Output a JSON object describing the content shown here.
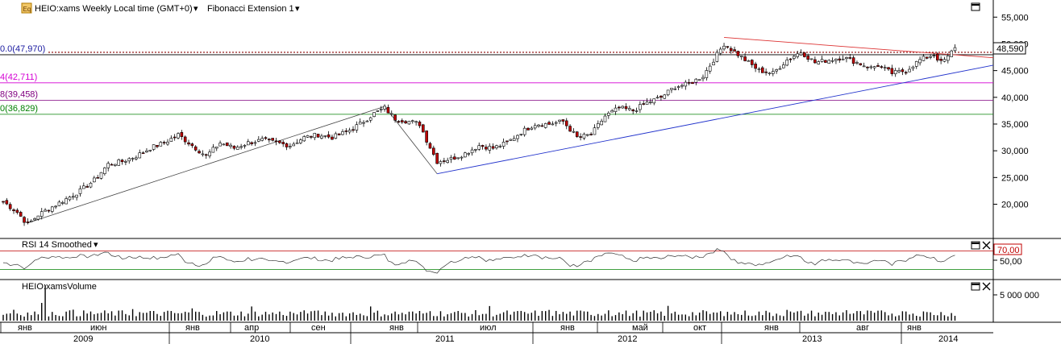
{
  "header": {
    "symbol_label": "HEIO:xams Weekly Local time (GMT+0)",
    "study_label": "Fibonacci Extension 1",
    "dropdown_glyph": "▾",
    "maximize_icon": "maximize-icon",
    "logo_icon": "chart-logo-icon"
  },
  "colors": {
    "up": "#ffffff",
    "down": "#c00000",
    "wick": "#000000",
    "trend_blue": "#2233cc",
    "trend_red": "#dd3333",
    "fib_0": "#1a1aa0",
    "fib_1": "#d400d4",
    "fib_2": "#800080",
    "fib_3": "#008000",
    "rsi_line": "#333333",
    "rsi_70": "#c00000",
    "rsi_30": "#008000"
  },
  "fib_levels": [
    {
      "label": "0.0(47,970)",
      "value": 47970,
      "color": "#1a1aa0"
    },
    {
      "label": "4(42,711)",
      "value": 42711,
      "color": "#d400d4"
    },
    {
      "label": "8(39,458)",
      "value": 39458,
      "color": "#800080"
    },
    {
      "label": "0(36,829)",
      "value": 36829,
      "color": "#008000"
    }
  ],
  "last_price_label": "48,590",
  "last_price": 48590,
  "rsi": {
    "title": "RSI 14 Smoothed",
    "level_label": "70,00",
    "axis_label": "50,00"
  },
  "volume": {
    "title": "HEIO:xamsVolume",
    "axis_label": "5 000 000"
  },
  "chart_data": {
    "type": "candlestick",
    "title": "HEIO:xams Weekly Local time (GMT+0)",
    "y_ticks": [
      "55,000",
      "50,000",
      "45,000",
      "40,000",
      "35,000",
      "30,000",
      "25,000",
      "20,000"
    ],
    "y_values": [
      55000,
      50000,
      45000,
      40000,
      35000,
      30000,
      25000,
      20000
    ],
    "ylim": [
      14500,
      57000
    ],
    "month_labels": [
      "янв",
      "июн",
      "янв",
      "апр",
      "сен",
      "янв",
      "июл",
      "янв",
      "май",
      "окт",
      "янв",
      "авг",
      "янв"
    ],
    "year_labels": [
      "2009",
      "2010",
      "2011",
      "2012",
      "2013",
      "2014"
    ],
    "close_anchors": [
      [
        0,
        20500
      ],
      [
        4,
        18500
      ],
      [
        7,
        16200
      ],
      [
        10,
        18000
      ],
      [
        14,
        19500
      ],
      [
        18,
        21000
      ],
      [
        22,
        22500
      ],
      [
        26,
        24500
      ],
      [
        30,
        27500
      ],
      [
        34,
        28000
      ],
      [
        38,
        29000
      ],
      [
        42,
        30500
      ],
      [
        46,
        31500
      ],
      [
        50,
        33000
      ],
      [
        54,
        31000
      ],
      [
        58,
        29000
      ],
      [
        62,
        31500
      ],
      [
        66,
        30500
      ],
      [
        70,
        31500
      ],
      [
        74,
        32000
      ],
      [
        78,
        31500
      ],
      [
        82,
        31000
      ],
      [
        86,
        32500
      ],
      [
        90,
        33000
      ],
      [
        94,
        32500
      ],
      [
        98,
        33500
      ],
      [
        102,
        35000
      ],
      [
        106,
        37000
      ],
      [
        109,
        38000
      ],
      [
        112,
        36000
      ],
      [
        116,
        35500
      ],
      [
        119,
        35000
      ],
      [
        121,
        32000
      ],
      [
        124,
        28000
      ],
      [
        128,
        28500
      ],
      [
        132,
        29500
      ],
      [
        136,
        31000
      ],
      [
        140,
        30500
      ],
      [
        144,
        31500
      ],
      [
        148,
        33500
      ],
      [
        152,
        35000
      ],
      [
        156,
        35000
      ],
      [
        160,
        35500
      ],
      [
        164,
        32500
      ],
      [
        168,
        33000
      ],
      [
        172,
        36500
      ],
      [
        176,
        38000
      ],
      [
        180,
        37500
      ],
      [
        184,
        39000
      ],
      [
        188,
        40000
      ],
      [
        192,
        42000
      ],
      [
        196,
        42500
      ],
      [
        200,
        44000
      ],
      [
        203,
        47000
      ],
      [
        206,
        50000
      ],
      [
        208,
        49000
      ],
      [
        212,
        47000
      ],
      [
        216,
        45000
      ],
      [
        220,
        44500
      ],
      [
        224,
        47000
      ],
      [
        228,
        48500
      ],
      [
        232,
        46500
      ],
      [
        236,
        47000
      ],
      [
        240,
        47500
      ],
      [
        244,
        46500
      ],
      [
        248,
        45500
      ],
      [
        250,
        46000
      ],
      [
        254,
        44500
      ],
      [
        258,
        45000
      ],
      [
        262,
        47000
      ],
      [
        266,
        48000
      ],
      [
        268,
        46500
      ],
      [
        270,
        47500
      ],
      [
        272,
        49500
      ]
    ],
    "rsi_range": [
      0,
      100
    ],
    "rsi_levels": [
      70,
      30
    ],
    "volume_tick": 5000000
  }
}
